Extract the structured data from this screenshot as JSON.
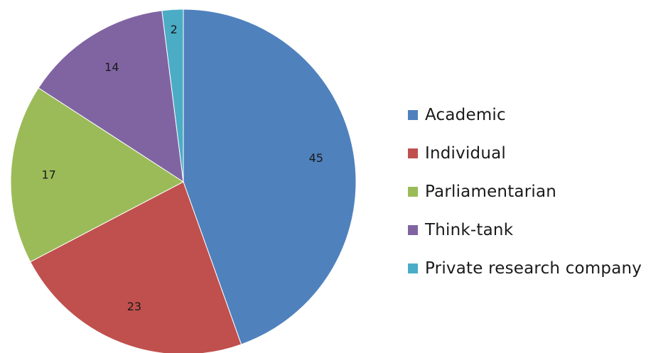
{
  "chart_data": {
    "type": "pie",
    "categories": [
      "Academic",
      "Individual",
      "Parliamentarian",
      "Think-tank",
      "Private research company"
    ],
    "values": [
      45,
      23,
      17,
      14,
      2
    ],
    "colors": [
      "#4f81bd",
      "#c0504d",
      "#9bbb59",
      "#8064a2",
      "#4bacc6"
    ],
    "title": "",
    "legend_placement": "right",
    "data_labels": [
      "45",
      "23",
      "17",
      "14",
      "2"
    ]
  }
}
